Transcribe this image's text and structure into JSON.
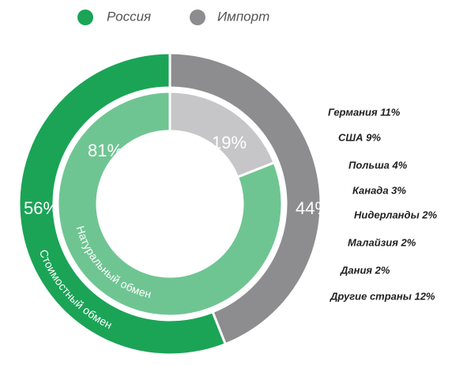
{
  "chart_data": {
    "type": "pie",
    "legend": [
      {
        "name": "Россия",
        "color": "#1ba456"
      },
      {
        "name": "Импорт",
        "color": "#8d8d8f"
      }
    ],
    "rings": [
      {
        "name": "Стоимостный обмен",
        "values": [
          56,
          44
        ],
        "value_labels": [
          "56%",
          "44%"
        ],
        "colors": [
          "#1ba456",
          "#8d8d8f"
        ]
      },
      {
        "name": "Натуральный обмен",
        "values": [
          81,
          19
        ],
        "value_labels": [
          "81%",
          "19%"
        ],
        "colors": [
          "#6fc592",
          "#c6c6c8"
        ]
      }
    ],
    "annotations": [
      "Германия 11%",
      "США 9%",
      "Польша 4%",
      "Канада 3%",
      "Нидерланды 2%",
      "Малайзия 2%",
      "Дания 2%",
      "Другие страны 12%"
    ]
  }
}
